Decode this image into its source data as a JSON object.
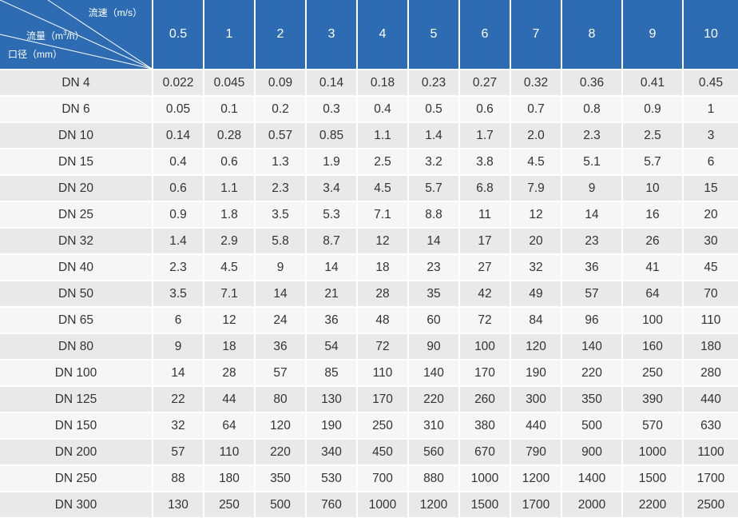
{
  "header": {
    "corner": {
      "speed_label": "流速（m/s）",
      "flow_label_pre": "流量（m",
      "flow_label_sup": "3",
      "flow_label_post": "/h）",
      "diameter_label": "口径（mm）"
    },
    "columns": [
      "0.5",
      "1",
      "2",
      "3",
      "4",
      "5",
      "6",
      "7",
      "8",
      "9",
      "10"
    ]
  },
  "rows": [
    {
      "size": "DN 4",
      "values": [
        "0.022",
        "0.045",
        "0.09",
        "0.14",
        "0.18",
        "0.23",
        "0.27",
        "0.32",
        "0.36",
        "0.41",
        "0.45"
      ]
    },
    {
      "size": "DN 6",
      "values": [
        "0.05",
        "0.1",
        "0.2",
        "0.3",
        "0.4",
        "0.5",
        "0.6",
        "0.7",
        "0.8",
        "0.9",
        "1"
      ]
    },
    {
      "size": "DN 10",
      "values": [
        "0.14",
        "0.28",
        "0.57",
        "0.85",
        "1.1",
        "1.4",
        "1.7",
        "2.0",
        "2.3",
        "2.5",
        "3"
      ]
    },
    {
      "size": "DN 15",
      "values": [
        "0.4",
        "0.6",
        "1.3",
        "1.9",
        "2.5",
        "3.2",
        "3.8",
        "4.5",
        "5.1",
        "5.7",
        "6"
      ]
    },
    {
      "size": "DN 20",
      "values": [
        "0.6",
        "1.1",
        "2.3",
        "3.4",
        "4.5",
        "5.7",
        "6.8",
        "7.9",
        "9",
        "10",
        "15"
      ]
    },
    {
      "size": "DN 25",
      "values": [
        "0.9",
        "1.8",
        "3.5",
        "5.3",
        "7.1",
        "8.8",
        "11",
        "12",
        "14",
        "16",
        "20"
      ]
    },
    {
      "size": "DN 32",
      "values": [
        "1.4",
        "2.9",
        "5.8",
        "8.7",
        "12",
        "14",
        "17",
        "20",
        "23",
        "26",
        "30"
      ]
    },
    {
      "size": "DN 40",
      "values": [
        "2.3",
        "4.5",
        "9",
        "14",
        "18",
        "23",
        "27",
        "32",
        "36",
        "41",
        "45"
      ]
    },
    {
      "size": "DN 50",
      "values": [
        "3.5",
        "7.1",
        "14",
        "21",
        "28",
        "35",
        "42",
        "49",
        "57",
        "64",
        "70"
      ]
    },
    {
      "size": "DN 65",
      "values": [
        "6",
        "12",
        "24",
        "36",
        "48",
        "60",
        "72",
        "84",
        "96",
        "100",
        "110"
      ]
    },
    {
      "size": "DN 80",
      "values": [
        "9",
        "18",
        "36",
        "54",
        "72",
        "90",
        "100",
        "120",
        "140",
        "160",
        "180"
      ]
    },
    {
      "size": "DN 100",
      "values": [
        "14",
        "28",
        "57",
        "85",
        "110",
        "140",
        "170",
        "190",
        "220",
        "250",
        "280"
      ]
    },
    {
      "size": "DN 125",
      "values": [
        "22",
        "44",
        "80",
        "130",
        "170",
        "220",
        "260",
        "300",
        "350",
        "390",
        "440"
      ]
    },
    {
      "size": "DN 150",
      "values": [
        "32",
        "64",
        "120",
        "190",
        "250",
        "310",
        "380",
        "440",
        "500",
        "570",
        "630"
      ]
    },
    {
      "size": "DN 200",
      "values": [
        "57",
        "110",
        "220",
        "340",
        "450",
        "560",
        "670",
        "790",
        "900",
        "1000",
        "1100"
      ]
    },
    {
      "size": "DN 250",
      "values": [
        "88",
        "180",
        "350",
        "530",
        "700",
        "880",
        "1000",
        "1200",
        "1400",
        "1500",
        "1700"
      ]
    },
    {
      "size": "DN 300",
      "values": [
        "130",
        "250",
        "500",
        "760",
        "1000",
        "1200",
        "1500",
        "1700",
        "2000",
        "2200",
        "2500"
      ]
    }
  ],
  "colors": {
    "header_bg": "#2d6cb3",
    "row_odd": "#e9e9e9",
    "row_even": "#f6f6f6",
    "text": "#333333"
  }
}
